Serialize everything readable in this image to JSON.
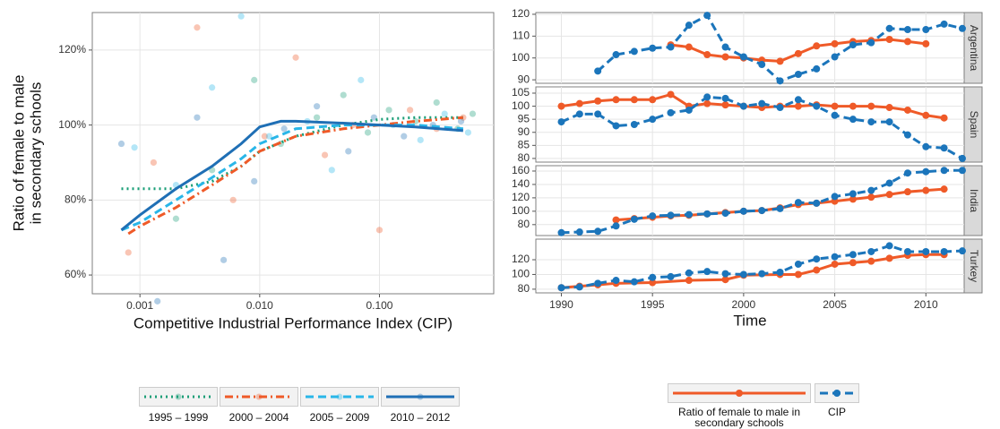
{
  "chart_data": [
    {
      "type": "scatter",
      "xscale": "log",
      "grid": true,
      "xlabel": "Competitive Industrial Performance Index (CIP)",
      "ylabel": [
        "Ratio of female to male",
        "in secondary schools"
      ],
      "xlim": [
        0.0004,
        0.9
      ],
      "ylim": [
        55,
        130
      ],
      "xticks": [
        0.001,
        {
          "value": 0.01,
          "label": "0.010"
        },
        {
          "value": 0.1,
          "label": "0.100"
        }
      ],
      "yticks": [
        {
          "value": 60,
          "label": "60%"
        },
        {
          "value": 80,
          "label": "80%"
        },
        {
          "value": 100,
          "label": "100%"
        },
        {
          "value": 120,
          "label": "120%"
        }
      ],
      "series": [
        {
          "name": "1995 – 1999",
          "color": "#1a9e77",
          "linestyle": "dotted",
          "x": [
            0.0007,
            0.001,
            0.002,
            0.004,
            0.007,
            0.01,
            0.02,
            0.05,
            0.1,
            0.2,
            0.5
          ],
          "values": [
            83,
            83,
            83,
            85,
            89,
            93,
            97,
            100,
            101.5,
            102,
            102
          ],
          "points_x": [
            0.002,
            0.004,
            0.009,
            0.015,
            0.03,
            0.05,
            0.08,
            0.12,
            0.2,
            0.3,
            0.45,
            0.6
          ],
          "points_y": [
            75,
            88,
            112,
            95,
            102,
            108,
            98,
            104,
            101,
            106,
            99,
            103
          ]
        },
        {
          "name": "2000 – 2004",
          "color": "#ef5a28",
          "linestyle": "dashdot",
          "x": [
            0.0008,
            0.001,
            0.002,
            0.004,
            0.007,
            0.01,
            0.02,
            0.05,
            0.1,
            0.2,
            0.5
          ],
          "values": [
            71,
            73,
            78,
            84,
            89,
            93,
            97,
            99,
            100,
            101,
            102
          ],
          "points_x": [
            0.0008,
            0.0013,
            0.003,
            0.006,
            0.011,
            0.02,
            0.035,
            0.06,
            0.1,
            0.18,
            0.3,
            0.5
          ],
          "points_y": [
            66,
            90,
            126,
            80,
            97,
            118,
            92,
            100,
            72,
            104,
            99,
            102
          ]
        },
        {
          "name": "2005 – 2009",
          "color": "#29b6e8",
          "linestyle": "dashed",
          "x": [
            0.0007,
            0.001,
            0.002,
            0.004,
            0.007,
            0.01,
            0.02,
            0.05,
            0.1,
            0.2,
            0.5
          ],
          "values": [
            72,
            74,
            80,
            86,
            91,
            95,
            99,
            100,
            100,
            100,
            99
          ],
          "points_x": [
            0.0009,
            0.002,
            0.004,
            0.007,
            0.012,
            0.025,
            0.04,
            0.07,
            0.13,
            0.22,
            0.35,
            0.55
          ],
          "points_y": [
            94,
            84,
            110,
            129,
            97,
            101,
            88,
            112,
            100,
            96,
            103,
            98
          ]
        },
        {
          "name": "2010 – 2012",
          "color": "#1f6fb5",
          "linestyle": "solid",
          "x": [
            0.0007,
            0.001,
            0.002,
            0.004,
            0.007,
            0.01,
            0.015,
            0.02,
            0.05,
            0.1,
            0.2,
            0.5
          ],
          "values": [
            72,
            76,
            83,
            89,
            95,
            99.5,
            101,
            101,
            100.5,
            100,
            99.5,
            98.5
          ],
          "points_x": [
            0.0007,
            0.0014,
            0.003,
            0.005,
            0.009,
            0.016,
            0.03,
            0.055,
            0.09,
            0.16,
            0.28,
            0.48
          ],
          "points_y": [
            95,
            53,
            102,
            64,
            85,
            99,
            105,
            93,
            102,
            97,
            100,
            101
          ]
        }
      ]
    },
    {
      "type": "line",
      "grid": true,
      "xlabel": "Time",
      "xlim": [
        1988.6,
        2012.1
      ],
      "xticks": [
        1990,
        1995,
        2000,
        2005,
        2010
      ],
      "series": [
        {
          "name": "Ratio of female to male in secondary schools",
          "color": "#ef5a28",
          "linestyle": "solid"
        },
        {
          "name": "CIP",
          "color": "#1b75bb",
          "linestyle": "dashed"
        }
      ],
      "panels": [
        {
          "label": "Argentina",
          "ylim": [
            88.4,
            120.8
          ],
          "yticks": [
            90,
            100,
            110,
            120
          ],
          "series": [
            {
              "x": [
                1996,
                1997,
                1998,
                1999,
                2000,
                2001,
                2002,
                2003,
                2004,
                2005,
                2006,
                2007,
                2008,
                2009,
                2010
              ],
              "values": [
                106,
                105,
                101.5,
                100.5,
                100,
                99,
                98.5,
                102,
                105.5,
                106.5,
                107.5,
                108,
                108.5,
                107.5,
                106.5
              ]
            },
            {
              "x": [
                1992,
                1993,
                1994,
                1995,
                1996,
                1997,
                1998,
                1999,
                2000,
                2001,
                2002,
                2003,
                2004,
                2005,
                2006,
                2007,
                2008,
                2009,
                2010,
                2011,
                2012
              ],
              "values": [
                94,
                101.5,
                103,
                104.5,
                105,
                115,
                119.5,
                105,
                100.5,
                97,
                89.5,
                92.5,
                95,
                100.5,
                106,
                107,
                113.5,
                113,
                113,
                115.5,
                113.5
              ]
            }
          ]
        },
        {
          "label": "Spain",
          "ylim": [
            78.6,
            107.4
          ],
          "yticks": [
            80,
            85,
            90,
            95,
            100,
            105
          ],
          "series": [
            {
              "x": [
                1990,
                1991,
                1992,
                1993,
                1994,
                1995,
                1996,
                1997,
                1998,
                1999,
                2000,
                2001,
                2002,
                2003,
                2004,
                2005,
                2006,
                2007,
                2008,
                2009,
                2010,
                2011
              ],
              "values": [
                100,
                101,
                102,
                102.5,
                102.5,
                102.5,
                104.5,
                100,
                101,
                100.5,
                100,
                99.5,
                100,
                100,
                100.5,
                100,
                100,
                100,
                99.5,
                98.5,
                96.5,
                95.5
              ]
            },
            {
              "x": [
                1990,
                1991,
                1992,
                1993,
                1994,
                1995,
                1996,
                1997,
                1998,
                1999,
                2000,
                2001,
                2002,
                2003,
                2004,
                2005,
                2006,
                2007,
                2008,
                2009,
                2010,
                2011,
                2012
              ],
              "values": [
                94,
                97,
                97,
                92.5,
                93,
                95,
                97.5,
                98.5,
                103.5,
                103,
                100,
                101,
                99.5,
                102.5,
                100,
                96.5,
                95,
                94,
                94,
                89,
                84.5,
                84,
                80
              ]
            }
          ]
        },
        {
          "label": "India",
          "ylim": [
            63.7,
            168
          ],
          "yticks": [
            80,
            100,
            120,
            140,
            160
          ],
          "series": [
            {
              "x": [
                1993,
                1994,
                1995,
                1996,
                1997,
                1998,
                1999,
                2000,
                2001,
                2002,
                2003,
                2004,
                2005,
                2006,
                2007,
                2008,
                2009,
                2010,
                2011
              ],
              "values": [
                87,
                89,
                91,
                93,
                94,
                96,
                98,
                100,
                101,
                105,
                110,
                112,
                115,
                118,
                121,
                125,
                129,
                131,
                133
              ]
            },
            {
              "x": [
                1990,
                1991,
                1992,
                1993,
                1994,
                1995,
                1996,
                1997,
                1998,
                1999,
                2000,
                2001,
                2002,
                2003,
                2004,
                2005,
                2006,
                2007,
                2008,
                2009,
                2010,
                2011,
                2012
              ],
              "values": [
                68,
                69,
                70,
                78,
                88,
                93,
                94,
                95,
                96,
                97,
                100,
                101,
                104,
                113,
                112,
                122,
                126,
                131,
                142,
                157,
                159,
                161,
                161
              ]
            }
          ]
        },
        {
          "label": "Turkey",
          "ylim": [
            75,
            148
          ],
          "yticks": [
            80,
            100,
            120
          ],
          "series": [
            {
              "x": [
                1990,
                1991,
                1992,
                1993,
                1995,
                1997,
                1999,
                2000,
                2002,
                2003,
                2004,
                2005,
                2006,
                2007,
                2008,
                2009,
                2010,
                2011
              ],
              "values": [
                82,
                84,
                86,
                88,
                89,
                92,
                93,
                99,
                100,
                100,
                106,
                114,
                116,
                118,
                122,
                126,
                127,
                127
              ]
            },
            {
              "x": [
                1990,
                1991,
                1992,
                1993,
                1994,
                1995,
                1996,
                1997,
                1998,
                1999,
                2000,
                2001,
                2002,
                2003,
                2004,
                2005,
                2006,
                2007,
                2008,
                2009,
                2010,
                2011,
                2012
              ],
              "values": [
                82,
                83,
                88,
                92,
                90,
                96,
                97,
                102,
                104,
                101,
                100,
                101,
                103,
                114,
                121,
                124,
                127,
                131,
                139,
                131,
                131,
                131,
                132
              ]
            }
          ]
        }
      ]
    }
  ]
}
